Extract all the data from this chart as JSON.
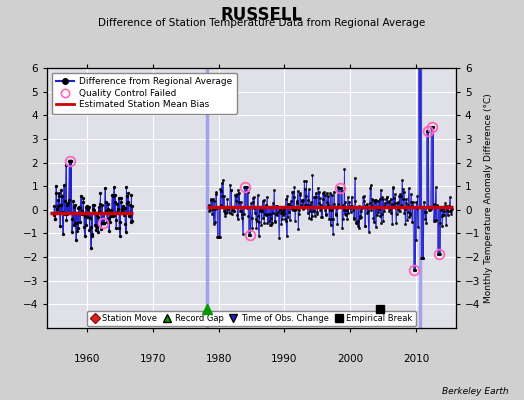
{
  "title": "RUSSELL",
  "subtitle": "Difference of Station Temperature Data from Regional Average",
  "ylabel_right": "Monthly Temperature Anomaly Difference (°C)",
  "xlim": [
    1954,
    2016
  ],
  "ylim": [
    -5,
    6
  ],
  "yticks": [
    -4,
    -3,
    -2,
    -1,
    0,
    1,
    2,
    3,
    4,
    5,
    6
  ],
  "xticks": [
    1960,
    1970,
    1980,
    1990,
    2000,
    2010
  ],
  "bg_color": "#d0d0d0",
  "plot_bg_color": "#e0e0e8",
  "grid_color": "#ffffff",
  "line_color": "#2222cc",
  "bias_color": "#cc0000",
  "vline_color": "#9999ee",
  "vertical_lines": [
    1978.3,
    2010.5
  ],
  "seg1_start": 1955.0,
  "seg1_end": 1967.0,
  "seg2_start": 1978.5,
  "seg2_end": 2015.5,
  "bias1_y": -0.12,
  "bias1_x_start": 1954.5,
  "bias1_x_end": 1967.0,
  "bias2_y": 0.1,
  "bias2_x_start": 1978.3,
  "bias2_x_end": 2015.5,
  "record_gap_x": 1978.3,
  "record_gap_y": -4.2,
  "empirical_break_x": 2004.5,
  "empirical_break_y": -4.2,
  "footnote": "Berkeley Earth",
  "seed": 12345
}
